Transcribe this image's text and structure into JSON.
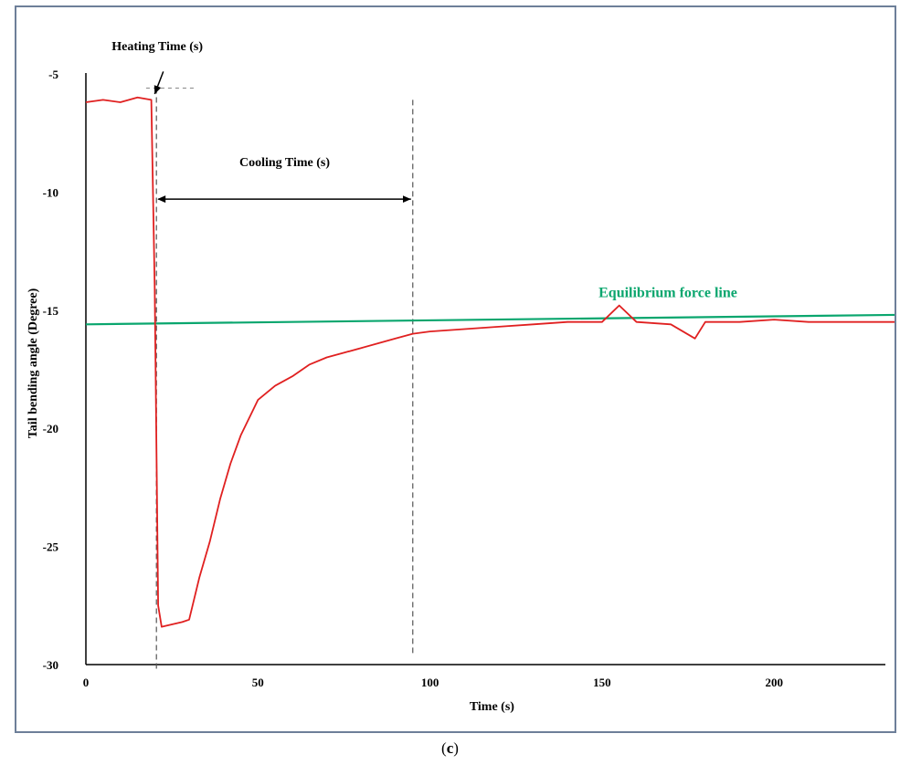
{
  "caption": {
    "open": "(",
    "letter": "c",
    "close": ")"
  },
  "chart_data": {
    "type": "line",
    "title": "",
    "xlabel": "Time (s)",
    "ylabel": "Tail bending angle (Degree)",
    "xlim": [
      0,
      235
    ],
    "ylim": [
      -30,
      -4.5
    ],
    "x_ticks": [
      0,
      50,
      100,
      150,
      200
    ],
    "y_ticks": [
      -5,
      -10,
      -15,
      -20,
      -25,
      -30
    ],
    "grid": false,
    "colors": {
      "series": "#e02020",
      "equilibrium": "#0aa66e",
      "frame": "#6d7f99"
    },
    "series": [
      {
        "x": [
          0,
          5,
          10,
          15,
          19,
          20,
          21,
          22,
          25,
          28,
          30,
          33,
          36,
          39,
          42,
          45,
          48,
          50,
          55,
          60,
          65,
          70,
          75,
          80,
          85,
          90,
          95,
          100,
          110,
          120,
          130,
          140,
          150,
          155,
          160,
          170,
          177,
          180,
          190,
          200,
          210,
          220,
          230,
          235
        ],
        "values": [
          -6.2,
          -6.1,
          -6.2,
          -6.0,
          -6.1,
          -14.0,
          -27.5,
          -28.4,
          -28.3,
          -28.2,
          -28.1,
          -26.3,
          -24.8,
          -23.0,
          -21.5,
          -20.3,
          -19.4,
          -18.8,
          -18.2,
          -17.8,
          -17.3,
          -17.0,
          -16.8,
          -16.6,
          -16.4,
          -16.2,
          -16.0,
          -15.9,
          -15.8,
          -15.7,
          -15.6,
          -15.5,
          -15.5,
          -14.8,
          -15.5,
          -15.6,
          -16.2,
          -15.5,
          -15.5,
          -15.4,
          -15.5,
          -15.5,
          -15.5,
          -15.5
        ]
      }
    ],
    "equilibrium_line": {
      "label": "Equilibrium  force line",
      "y_start": -15.6,
      "y_end": -15.2
    },
    "markers": {
      "heating_end_x": 20.5,
      "cooling_end_x": 95,
      "heating_label": "Heating Time (s)",
      "cooling_label": "Cooling Time (s)"
    }
  }
}
